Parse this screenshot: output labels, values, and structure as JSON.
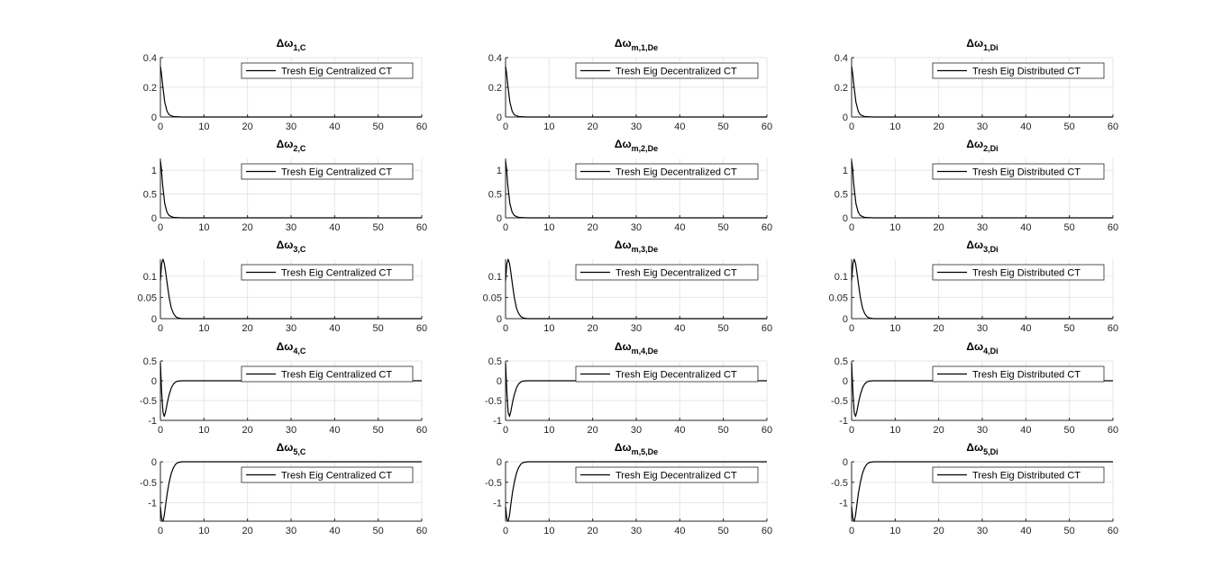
{
  "figure": {
    "background": "#ffffff",
    "line_color": "#000000",
    "grid_color": "#e6e6e6",
    "axis_color": "#262626"
  },
  "chart_data": [
    {
      "type": "line",
      "title": "Δω1,C",
      "title_main": "Δω",
      "title_sub": "1,C",
      "xlim": [
        0,
        60
      ],
      "ylim": [
        0,
        0.4
      ],
      "xticks": [
        0,
        10,
        20,
        30,
        40,
        50,
        60
      ],
      "yticks": [
        0,
        0.2,
        0.4
      ],
      "yticklabels": [
        "0",
        "0.2",
        "0.4"
      ],
      "grid": true,
      "legend": {
        "location": "top-right",
        "entries": [
          "Tresh Eig Centralized CT"
        ]
      },
      "series": [
        {
          "name": "Tresh Eig Centralized CT",
          "x": [
            0,
            0.2,
            0.5,
            1,
            1.5,
            2,
            3,
            5,
            60
          ],
          "y": [
            0.34,
            0.3,
            0.22,
            0.1,
            0.04,
            0.015,
            0.003,
            0,
            0
          ]
        }
      ]
    },
    {
      "type": "line",
      "title": "Δωm,1,De",
      "title_main": "Δω",
      "title_sub": "m,1,De",
      "xlim": [
        0,
        60
      ],
      "ylim": [
        0,
        0.4
      ],
      "xticks": [
        0,
        10,
        20,
        30,
        40,
        50,
        60
      ],
      "yticks": [
        0,
        0.2,
        0.4
      ],
      "yticklabels": [
        "0",
        "0.2",
        "0.4"
      ],
      "grid": true,
      "legend": {
        "location": "top-right",
        "entries": [
          "Tresh Eig Decentralized CT"
        ]
      },
      "series": [
        {
          "name": "Tresh Eig Decentralized CT",
          "x": [
            0,
            0.2,
            0.5,
            1,
            1.5,
            2,
            3,
            5,
            60
          ],
          "y": [
            0.34,
            0.3,
            0.22,
            0.1,
            0.04,
            0.015,
            0.003,
            0,
            0
          ]
        }
      ]
    },
    {
      "type": "line",
      "title": "Δω1,Di",
      "title_main": "Δω",
      "title_sub": "1,Di",
      "xlim": [
        0,
        60
      ],
      "ylim": [
        0,
        0.4
      ],
      "xticks": [
        0,
        10,
        20,
        30,
        40,
        50,
        60
      ],
      "yticks": [
        0,
        0.2,
        0.4
      ],
      "yticklabels": [
        "0",
        "0.2",
        "0.4"
      ],
      "grid": true,
      "legend": {
        "location": "top-right",
        "entries": [
          "Tresh Eig Distributed CT"
        ]
      },
      "series": [
        {
          "name": "Tresh Eig Distributed CT",
          "x": [
            0,
            0.2,
            0.5,
            1,
            1.5,
            2,
            3,
            5,
            60
          ],
          "y": [
            0.34,
            0.3,
            0.22,
            0.1,
            0.04,
            0.015,
            0.003,
            0,
            0
          ]
        }
      ]
    },
    {
      "type": "line",
      "title": "Δω2,C",
      "title_main": "Δω",
      "title_sub": "2,C",
      "xlim": [
        0,
        60
      ],
      "ylim": [
        0,
        1.25
      ],
      "xticks": [
        0,
        10,
        20,
        30,
        40,
        50,
        60
      ],
      "yticks": [
        0,
        0.5,
        1
      ],
      "yticklabels": [
        "0",
        "0.5",
        "1"
      ],
      "grid": true,
      "legend": {
        "location": "top-right",
        "entries": [
          "Tresh Eig Centralized CT"
        ]
      },
      "series": [
        {
          "name": "Tresh Eig Centralized CT",
          "x": [
            0,
            0.2,
            0.5,
            1,
            1.5,
            2,
            3,
            5,
            60
          ],
          "y": [
            1.2,
            1.05,
            0.7,
            0.3,
            0.12,
            0.05,
            0.01,
            0,
            0
          ]
        }
      ]
    },
    {
      "type": "line",
      "title": "Δωm,2,De",
      "title_main": "Δω",
      "title_sub": "m,2,De",
      "xlim": [
        0,
        60
      ],
      "ylim": [
        0,
        1.25
      ],
      "xticks": [
        0,
        10,
        20,
        30,
        40,
        50,
        60
      ],
      "yticks": [
        0,
        0.5,
        1
      ],
      "yticklabels": [
        "0",
        "0.5",
        "1"
      ],
      "grid": true,
      "legend": {
        "location": "top-right",
        "entries": [
          "Tresh Eig Decentralized CT"
        ]
      },
      "series": [
        {
          "name": "Tresh Eig Decentralized CT",
          "x": [
            0,
            0.2,
            0.5,
            1,
            1.5,
            2,
            3,
            5,
            60
          ],
          "y": [
            1.2,
            1.05,
            0.7,
            0.3,
            0.12,
            0.05,
            0.01,
            0,
            0
          ]
        }
      ]
    },
    {
      "type": "line",
      "title": "Δω2,Di",
      "title_main": "Δω",
      "title_sub": "2,Di",
      "xlim": [
        0,
        60
      ],
      "ylim": [
        0,
        1.25
      ],
      "xticks": [
        0,
        10,
        20,
        30,
        40,
        50,
        60
      ],
      "yticks": [
        0,
        0.5,
        1
      ],
      "yticklabels": [
        "0",
        "0.5",
        "1"
      ],
      "grid": true,
      "legend": {
        "location": "top-right",
        "entries": [
          "Tresh Eig Distributed CT"
        ]
      },
      "series": [
        {
          "name": "Tresh Eig Distributed CT",
          "x": [
            0,
            0.2,
            0.5,
            1,
            1.5,
            2,
            3,
            5,
            60
          ],
          "y": [
            1.2,
            1.05,
            0.7,
            0.3,
            0.12,
            0.05,
            0.01,
            0,
            0
          ]
        }
      ]
    },
    {
      "type": "line",
      "title": "Δω3,C",
      "title_main": "Δω",
      "title_sub": "3,C",
      "xlim": [
        0,
        60
      ],
      "ylim": [
        0,
        0.14
      ],
      "xticks": [
        0,
        10,
        20,
        30,
        40,
        50,
        60
      ],
      "yticks": [
        0,
        0.05,
        0.1
      ],
      "yticklabels": [
        "0",
        "0.05",
        "0.1"
      ],
      "grid": true,
      "legend": {
        "location": "top-right",
        "entries": [
          "Tresh Eig Centralized CT"
        ]
      },
      "series": [
        {
          "name": "Tresh Eig Centralized CT",
          "x": [
            0,
            0.3,
            0.6,
            0.9,
            1.2,
            1.6,
            2,
            2.5,
            3,
            3.5,
            4,
            5,
            60
          ],
          "y": [
            0.09,
            0.13,
            0.14,
            0.13,
            0.11,
            0.08,
            0.05,
            0.025,
            0.012,
            0.005,
            0.002,
            0,
            0
          ]
        }
      ]
    },
    {
      "type": "line",
      "title": "Δωm,3,De",
      "title_main": "Δω",
      "title_sub": "m,3,De",
      "xlim": [
        0,
        60
      ],
      "ylim": [
        0,
        0.14
      ],
      "xticks": [
        0,
        10,
        20,
        30,
        40,
        50,
        60
      ],
      "yticks": [
        0,
        0.05,
        0.1
      ],
      "yticklabels": [
        "0",
        "0.05",
        "0.1"
      ],
      "grid": true,
      "legend": {
        "location": "top-right",
        "entries": [
          "Tresh Eig Decentralized CT"
        ]
      },
      "series": [
        {
          "name": "Tresh Eig Decentralized CT",
          "x": [
            0,
            0.3,
            0.6,
            0.9,
            1.2,
            1.6,
            2,
            2.5,
            3,
            3.5,
            4,
            5,
            60
          ],
          "y": [
            0.09,
            0.13,
            0.14,
            0.13,
            0.11,
            0.08,
            0.05,
            0.025,
            0.012,
            0.005,
            0.002,
            0,
            0
          ]
        }
      ]
    },
    {
      "type": "line",
      "title": "Δω3,Di",
      "title_main": "Δω",
      "title_sub": "3,Di",
      "xlim": [
        0,
        60
      ],
      "ylim": [
        0,
        0.14
      ],
      "xticks": [
        0,
        10,
        20,
        30,
        40,
        50,
        60
      ],
      "yticks": [
        0,
        0.05,
        0.1
      ],
      "yticklabels": [
        "0",
        "0.05",
        "0.1"
      ],
      "grid": true,
      "legend": {
        "location": "top-right",
        "entries": [
          "Tresh Eig Distributed CT"
        ]
      },
      "series": [
        {
          "name": "Tresh Eig Distributed CT",
          "x": [
            0,
            0.3,
            0.6,
            0.9,
            1.2,
            1.6,
            2,
            2.5,
            3,
            3.5,
            4,
            5,
            60
          ],
          "y": [
            0.09,
            0.13,
            0.14,
            0.13,
            0.11,
            0.08,
            0.05,
            0.025,
            0.012,
            0.005,
            0.002,
            0,
            0
          ]
        }
      ]
    },
    {
      "type": "line",
      "title": "Δω4,C",
      "title_main": "Δω",
      "title_sub": "4,C",
      "xlim": [
        0,
        60
      ],
      "ylim": [
        -1,
        0.5
      ],
      "xticks": [
        0,
        10,
        20,
        30,
        40,
        50,
        60
      ],
      "yticks": [
        -1,
        -0.5,
        0,
        0.5
      ],
      "yticklabels": [
        "-1",
        "-0.5",
        "0",
        "0.5"
      ],
      "grid": true,
      "legend": {
        "location": "top-right",
        "entries": [
          "Tresh Eig Centralized CT"
        ]
      },
      "series": [
        {
          "name": "Tresh Eig Centralized CT",
          "x": [
            0,
            0.3,
            0.6,
            0.9,
            1.2,
            1.6,
            2,
            2.5,
            3,
            3.5,
            4,
            5,
            6,
            60
          ],
          "y": [
            0.45,
            -0.3,
            -0.8,
            -0.9,
            -0.78,
            -0.55,
            -0.35,
            -0.18,
            -0.08,
            -0.03,
            -0.01,
            0,
            0,
            0
          ]
        }
      ]
    },
    {
      "type": "line",
      "title": "Δωm,4,De",
      "title_main": "Δω",
      "title_sub": "m,4,De",
      "xlim": [
        0,
        60
      ],
      "ylim": [
        -1,
        0.5
      ],
      "xticks": [
        0,
        10,
        20,
        30,
        40,
        50,
        60
      ],
      "yticks": [
        -1,
        -0.5,
        0,
        0.5
      ],
      "yticklabels": [
        "-1",
        "-0.5",
        "0",
        "0.5"
      ],
      "grid": true,
      "legend": {
        "location": "top-right",
        "entries": [
          "Tresh Eig Decentralized CT"
        ]
      },
      "series": [
        {
          "name": "Tresh Eig Decentralized CT",
          "x": [
            0,
            0.3,
            0.6,
            0.9,
            1.2,
            1.6,
            2,
            2.5,
            3,
            3.5,
            4,
            5,
            6,
            60
          ],
          "y": [
            0.45,
            -0.3,
            -0.8,
            -0.9,
            -0.78,
            -0.55,
            -0.35,
            -0.18,
            -0.08,
            -0.03,
            -0.01,
            0,
            0,
            0
          ]
        }
      ]
    },
    {
      "type": "line",
      "title": "Δω4,Di",
      "title_main": "Δω",
      "title_sub": "4,Di",
      "xlim": [
        0,
        60
      ],
      "ylim": [
        -1,
        0.5
      ],
      "xticks": [
        0,
        10,
        20,
        30,
        40,
        50,
        60
      ],
      "yticks": [
        -1,
        -0.5,
        0,
        0.5
      ],
      "yticklabels": [
        "-1",
        "-0.5",
        "0",
        "0.5"
      ],
      "grid": true,
      "legend": {
        "location": "top-right",
        "entries": [
          "Tresh Eig Distributed CT"
        ]
      },
      "series": [
        {
          "name": "Tresh Eig Distributed CT",
          "x": [
            0,
            0.3,
            0.6,
            0.9,
            1.2,
            1.6,
            2,
            2.5,
            3,
            3.5,
            4,
            5,
            6,
            60
          ],
          "y": [
            0.45,
            -0.3,
            -0.8,
            -0.9,
            -0.78,
            -0.55,
            -0.35,
            -0.18,
            -0.08,
            -0.03,
            -0.01,
            0,
            0,
            0
          ]
        }
      ]
    },
    {
      "type": "line",
      "title": "Δω5,C",
      "title_main": "Δω",
      "title_sub": "5,C",
      "xlim": [
        0,
        60
      ],
      "ylim": [
        -1.45,
        0
      ],
      "xticks": [
        0,
        10,
        20,
        30,
        40,
        50,
        60
      ],
      "yticks": [
        -1,
        -0.5,
        0
      ],
      "yticklabels": [
        "-1",
        "-0.5",
        "0"
      ],
      "grid": true,
      "legend": {
        "location": "top-right",
        "entries": [
          "Tresh Eig Centralized CT"
        ]
      },
      "series": [
        {
          "name": "Tresh Eig Centralized CT",
          "x": [
            0,
            0.3,
            0.6,
            0.9,
            1.2,
            1.6,
            2,
            2.5,
            3,
            3.5,
            4,
            5,
            6,
            60
          ],
          "y": [
            -1.1,
            -1.4,
            -1.45,
            -1.3,
            -1.05,
            -0.75,
            -0.5,
            -0.28,
            -0.14,
            -0.06,
            -0.02,
            0,
            0,
            0
          ]
        }
      ]
    },
    {
      "type": "line",
      "title": "Δωm,5,De",
      "title_main": "Δω",
      "title_sub": "m,5,De",
      "xlim": [
        0,
        60
      ],
      "ylim": [
        -1.45,
        0
      ],
      "xticks": [
        0,
        10,
        20,
        30,
        40,
        50,
        60
      ],
      "yticks": [
        -1,
        -0.5,
        0
      ],
      "yticklabels": [
        "-1",
        "-0.5",
        "0"
      ],
      "grid": true,
      "legend": {
        "location": "top-right",
        "entries": [
          "Tresh Eig Decentralized CT"
        ]
      },
      "series": [
        {
          "name": "Tresh Eig Decentralized CT",
          "x": [
            0,
            0.3,
            0.6,
            0.9,
            1.2,
            1.6,
            2,
            2.5,
            3,
            3.5,
            4,
            5,
            6,
            60
          ],
          "y": [
            -1.1,
            -1.4,
            -1.45,
            -1.3,
            -1.05,
            -0.75,
            -0.5,
            -0.28,
            -0.14,
            -0.06,
            -0.02,
            0,
            0,
            0
          ]
        }
      ]
    },
    {
      "type": "line",
      "title": "Δω5,Di",
      "title_main": "Δω",
      "title_sub": "5,Di",
      "xlim": [
        0,
        60
      ],
      "ylim": [
        -1.45,
        0
      ],
      "xticks": [
        0,
        10,
        20,
        30,
        40,
        50,
        60
      ],
      "yticks": [
        -1,
        -0.5,
        0
      ],
      "yticklabels": [
        "-1",
        "-0.5",
        "0"
      ],
      "grid": true,
      "legend": {
        "location": "top-right",
        "entries": [
          "Tresh Eig Distributed CT"
        ]
      },
      "series": [
        {
          "name": "Tresh Eig Distributed CT",
          "x": [
            0,
            0.3,
            0.6,
            0.9,
            1.2,
            1.6,
            2,
            2.5,
            3,
            3.5,
            4,
            5,
            6,
            60
          ],
          "y": [
            -1.1,
            -1.4,
            -1.45,
            -1.3,
            -1.05,
            -0.75,
            -0.5,
            -0.28,
            -0.14,
            -0.06,
            -0.02,
            0,
            0,
            0
          ]
        }
      ]
    }
  ]
}
